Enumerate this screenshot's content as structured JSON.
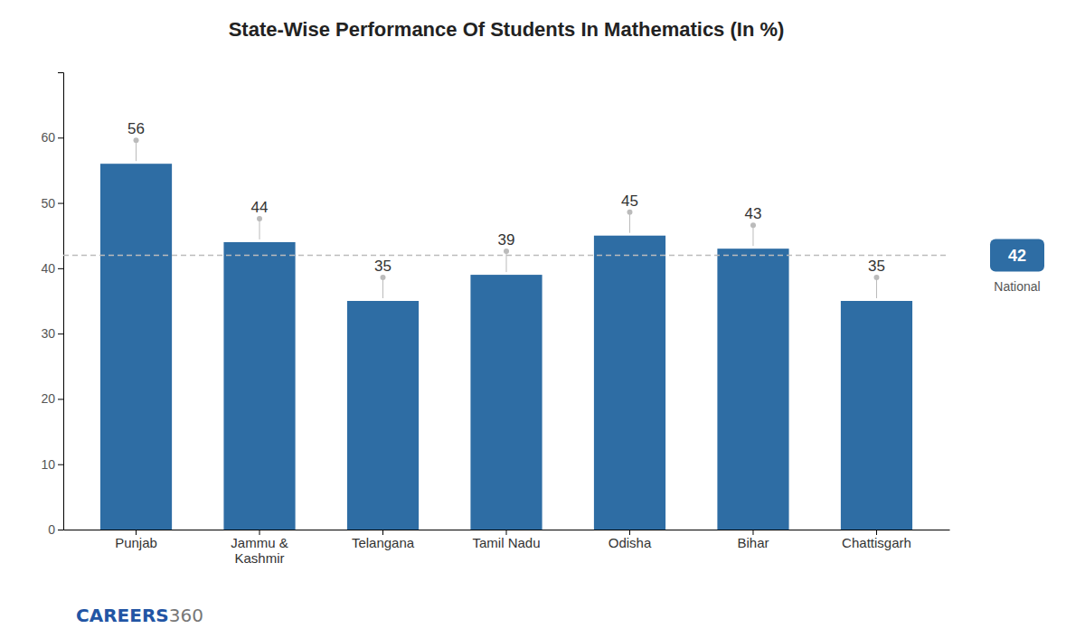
{
  "chart_data": {
    "type": "bar",
    "title": "State-Wise Performance Of Students In Mathematics (In %)",
    "categories": [
      "Punjab",
      "Jammu &\nKashmir",
      "Telangana",
      "Tamil Nadu",
      "Odisha",
      "Bihar",
      "Chattisgarh"
    ],
    "values": [
      56,
      44,
      35,
      39,
      45,
      43,
      35
    ],
    "color": "#2e6da4",
    "ylim": [
      0,
      70
    ],
    "yticks": [
      0,
      10,
      20,
      30,
      40,
      50,
      60
    ],
    "grid": false,
    "data_labels": true,
    "annotations": [
      {
        "text": "National",
        "y": 42
      },
      {
        "text": "CAREERS"
      },
      {
        "text": "360"
      }
    ]
  }
}
